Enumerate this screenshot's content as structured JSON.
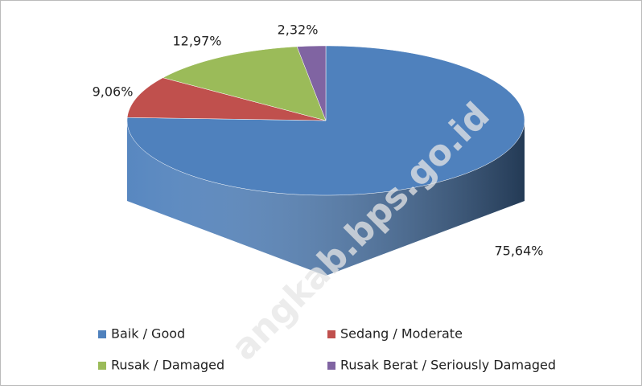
{
  "chart_data": {
    "type": "pie",
    "categories": [
      "Baik  / Good",
      "Sedang  /  Moderate",
      "Rusak  / Damaged",
      "Rusak Berat / Seriously Damaged"
    ],
    "values": [
      75.64,
      9.06,
      12.97,
      2.32
    ],
    "value_labels": [
      "75,64%",
      "9,06%",
      "12,97%",
      "2,32%"
    ],
    "colors": [
      "#4f81bd",
      "#c0504d",
      "#9bbb59",
      "#8064a2"
    ],
    "watermark": "angkab.bps.go.id"
  }
}
